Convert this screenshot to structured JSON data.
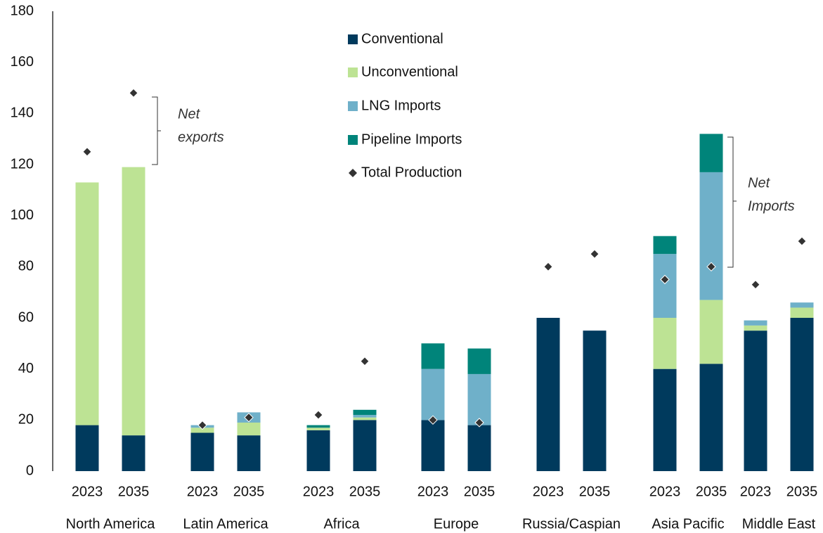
{
  "chart_data": {
    "type": "stacked_bar",
    "groups": [
      {
        "name": "North America",
        "categories": [
          "2023",
          "2035"
        ]
      },
      {
        "name": "Latin America",
        "categories": [
          "2023",
          "2035"
        ]
      },
      {
        "name": "Africa",
        "categories": [
          "2023",
          "2035"
        ]
      },
      {
        "name": "Europe",
        "categories": [
          "2023",
          "2035"
        ]
      },
      {
        "name": "Russia/Caspian",
        "categories": [
          "2023",
          "2035"
        ]
      },
      {
        "name": "Asia Pacific",
        "categories": [
          "2023",
          "2035"
        ]
      },
      {
        "name": "Middle East",
        "categories": [
          "2023",
          "2035"
        ]
      }
    ],
    "series": [
      {
        "name": "Conventional",
        "color": "#003a5d",
        "values": [
          18,
          14,
          15,
          14,
          16,
          20,
          20,
          18,
          60,
          55,
          40,
          42,
          55,
          60
        ]
      },
      {
        "name": "Unconventional",
        "color": "#bde394",
        "values": [
          95,
          105,
          2,
          5,
          1,
          1,
          0,
          0,
          0,
          0,
          20,
          25,
          2,
          4
        ]
      },
      {
        "name": "LNG Imports",
        "color": "#6fb0c9",
        "values": [
          0,
          0,
          1,
          4,
          0,
          1,
          20,
          20,
          0,
          0,
          25,
          50,
          2,
          2
        ]
      },
      {
        "name": "Pipeline Imports",
        "color": "#00847a",
        "values": [
          0,
          0,
          0,
          0,
          1,
          2,
          10,
          10,
          0,
          0,
          7,
          15,
          0,
          0
        ]
      }
    ],
    "scatter": {
      "name": "Total Production",
      "color": "#333333",
      "values": [
        125,
        148,
        18,
        21,
        22,
        43,
        20,
        19,
        80,
        85,
        75,
        80,
        73,
        90
      ]
    },
    "annotations": [
      [
        "Net",
        "exports"
      ],
      [
        "Net",
        "Imports"
      ]
    ],
    "ylim": [
      0,
      180
    ],
    "yticks": [
      0,
      20,
      40,
      60,
      80,
      100,
      120,
      140,
      160,
      180
    ]
  }
}
